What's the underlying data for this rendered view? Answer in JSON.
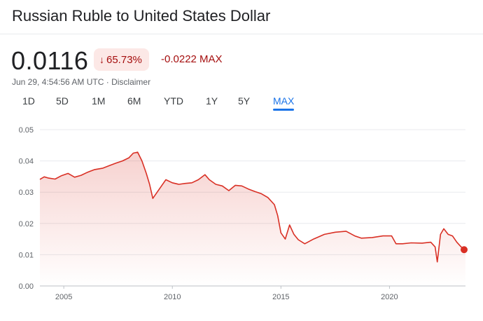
{
  "header": {
    "title": "Russian Ruble to United States Dollar"
  },
  "quote": {
    "price": "0.0116",
    "arrow_icon": "arrow-down-icon",
    "percent_change": "65.73%",
    "absolute_change": "-0.0222 MAX",
    "timestamp": "Jun 29, 4:54:56 AM UTC · Disclaimer"
  },
  "tabs": [
    {
      "label": "1D"
    },
    {
      "label": "5D"
    },
    {
      "label": "1M"
    },
    {
      "label": "6M"
    },
    {
      "label": "YTD"
    },
    {
      "label": "1Y"
    },
    {
      "label": "5Y"
    },
    {
      "label": "MAX",
      "active": true
    }
  ],
  "colors": {
    "line": "#d93025",
    "negative": "#a50e0e",
    "badge_bg": "#fce8e6",
    "active_tab": "#1a73e8",
    "grid": "#e8eaed"
  },
  "chart_data": {
    "type": "area",
    "ylim": [
      0,
      0.05
    ],
    "xlim": [
      2003.9,
      2023.5
    ],
    "yticks": [
      "0.00",
      "0.01",
      "0.02",
      "0.03",
      "0.04",
      "0.05"
    ],
    "ytick_values": [
      0,
      0.01,
      0.02,
      0.03,
      0.04,
      0.05
    ],
    "xticks": [
      "2005",
      "2010",
      "2015",
      "2020"
    ],
    "xtick_values": [
      2005,
      2010,
      2015,
      2020
    ],
    "grid": true,
    "series": [
      {
        "x": [
          2003.9,
          2004.1,
          2004.3,
          2004.6,
          2004.9,
          2005.2,
          2005.5,
          2005.8,
          2006.1,
          2006.4,
          2006.8,
          2007.1,
          2007.4,
          2007.7,
          2008.0,
          2008.2,
          2008.4,
          2008.6,
          2008.8,
          2008.95,
          2009.1,
          2009.3,
          2009.5,
          2009.7,
          2010.0,
          2010.3,
          2010.6,
          2010.9,
          2011.2,
          2011.5,
          2011.7,
          2012.0,
          2012.3,
          2012.6,
          2012.9,
          2013.2,
          2013.5,
          2013.8,
          2014.1,
          2014.4,
          2014.7,
          2014.85,
          2015.0,
          2015.2,
          2015.4,
          2015.6,
          2015.8,
          2016.1,
          2016.5,
          2017.0,
          2017.5,
          2018.0,
          2018.4,
          2018.7,
          2019.2,
          2019.7,
          2020.1,
          2020.3,
          2020.6,
          2021.0,
          2021.5,
          2021.9,
          2022.1,
          2022.2,
          2022.35,
          2022.5,
          2022.7,
          2022.9,
          2023.1,
          2023.3,
          2023.5
        ],
        "y": [
          0.0341,
          0.0349,
          0.0345,
          0.0342,
          0.0353,
          0.036,
          0.0348,
          0.0354,
          0.0364,
          0.0372,
          0.0377,
          0.0385,
          0.0393,
          0.04,
          0.041,
          0.0425,
          0.0428,
          0.04,
          0.036,
          0.0325,
          0.028,
          0.03,
          0.032,
          0.034,
          0.033,
          0.0325,
          0.0328,
          0.033,
          0.034,
          0.0356,
          0.034,
          0.0325,
          0.032,
          0.0305,
          0.0322,
          0.032,
          0.031,
          0.0302,
          0.0295,
          0.0283,
          0.026,
          0.0225,
          0.017,
          0.015,
          0.0195,
          0.0165,
          0.0148,
          0.0135,
          0.015,
          0.0165,
          0.0172,
          0.0175,
          0.016,
          0.0153,
          0.0155,
          0.016,
          0.016,
          0.0135,
          0.0135,
          0.0138,
          0.0137,
          0.014,
          0.0125,
          0.0077,
          0.0165,
          0.0183,
          0.0165,
          0.016,
          0.014,
          0.0125,
          0.0116
        ]
      }
    ]
  }
}
